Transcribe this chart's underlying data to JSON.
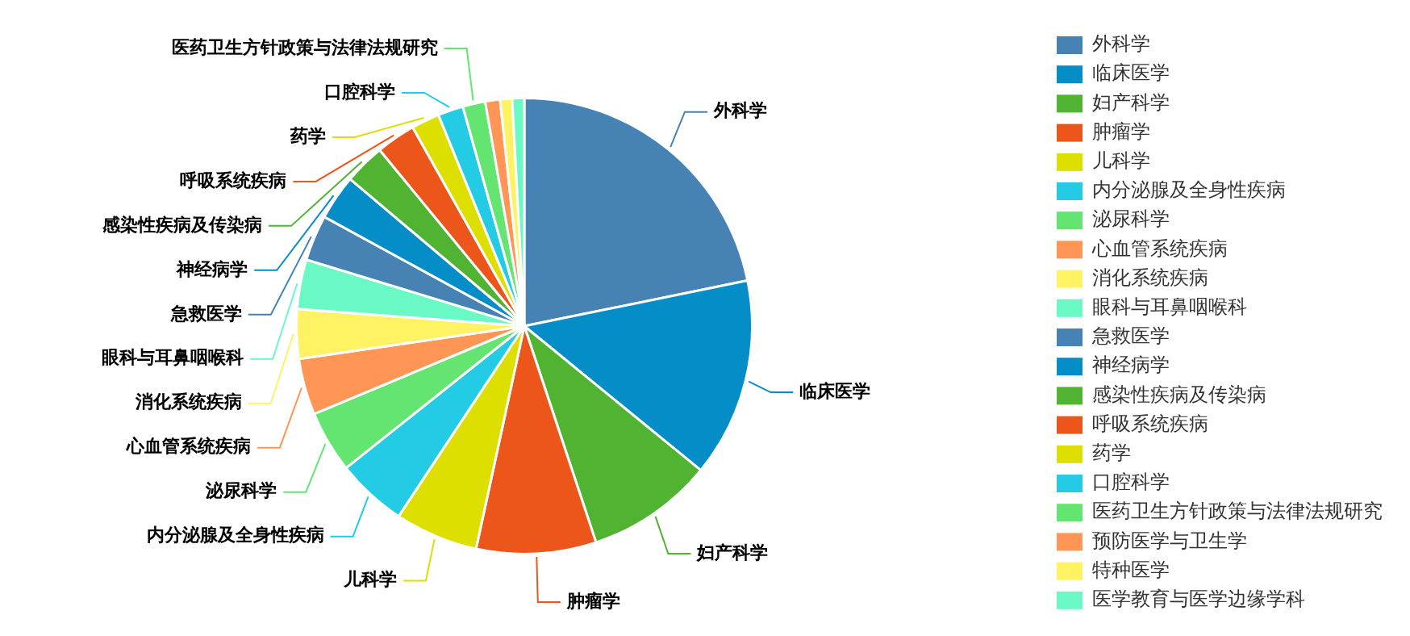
{
  "chart_data": {
    "type": "pie",
    "legend": "right",
    "categories": [
      "外科学",
      "临床医学",
      "妇产科学",
      "肿瘤学",
      "儿科学",
      "内分泌腺及全身性疾病",
      "泌尿科学",
      "心血管系统疾病",
      "消化系统疾病",
      "眼科与耳鼻咽喉科",
      "急救医学",
      "神经病学",
      "感染性疾病及传染病",
      "呼吸系统疾病",
      "药学",
      "口腔科学",
      "医药卫生方针政策与法律法规研究",
      "预防医学与卫生学",
      "特种医学",
      "医学教育与医学边缘学科"
    ],
    "values": [
      21.8,
      14.1,
      9.0,
      8.5,
      5.9,
      5.0,
      4.4,
      4.0,
      3.5,
      3.5,
      3.25,
      3.2,
      2.9,
      2.8,
      2.0,
      1.8,
      1.6,
      1.05,
      0.85,
      0.85
    ],
    "colors": [
      "#4682b4",
      "#058dc7",
      "#50b432",
      "#ed561b",
      "#dddf00",
      "#24cbe5",
      "#64e572",
      "#ff9655",
      "#fff263",
      "#6af9c4",
      "#4682b4",
      "#058dc7",
      "#50b432",
      "#ed561b",
      "#dddf00",
      "#24cbe5",
      "#64e572",
      "#ff9655",
      "#fff263",
      "#6af9c4"
    ]
  }
}
